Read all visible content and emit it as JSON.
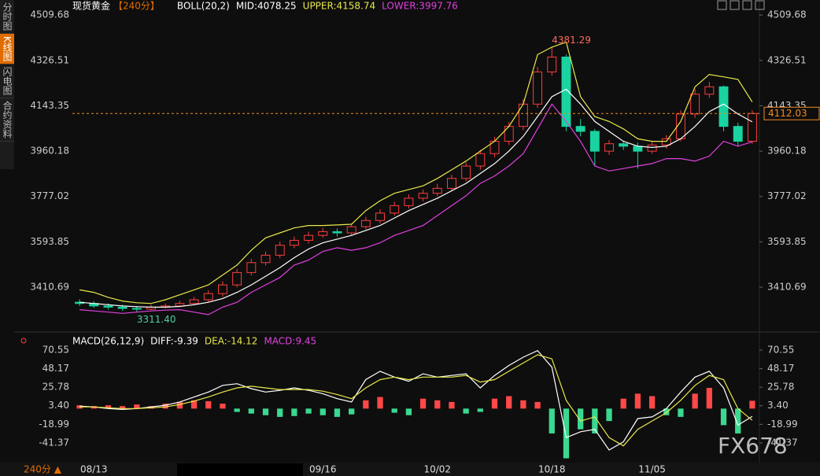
{
  "sidebar": {
    "tabs": [
      "分时图",
      "K线图",
      "闪电图",
      "合约资料"
    ]
  },
  "footer": {
    "period": "240分 ▲",
    "watermark": "FX678"
  },
  "chart_data": [
    {
      "type": "candlestick",
      "title": "现货黄金",
      "period": "【240分】",
      "legend": [
        {
          "text": "BOLL(20,2)",
          "color": "#ffffff"
        },
        {
          "text": "MID:4078.25",
          "color": "#ffffff"
        },
        {
          "text": "UPPER:4158.74",
          "color": "#e8e84a"
        },
        {
          "text": "LOWER:3997.76",
          "color": "#e040e0"
        }
      ],
      "categories": [
        null,
        "08/13",
        null,
        null,
        null,
        null,
        null,
        null,
        null,
        null,
        null,
        null,
        null,
        null,
        null,
        null,
        null,
        "09/16",
        null,
        null,
        null,
        null,
        null,
        null,
        null,
        "10/02",
        null,
        null,
        null,
        null,
        null,
        null,
        null,
        "10/18",
        null,
        null,
        null,
        null,
        null,
        null,
        "11/05",
        null,
        null,
        null,
        null,
        null,
        null,
        null
      ],
      "open": [
        3350,
        3345,
        3335,
        3330,
        3325,
        3322,
        3330,
        3335,
        3345,
        3360,
        3385,
        3420,
        3470,
        3510,
        3540,
        3580,
        3600,
        3620,
        3635,
        3630,
        3655,
        3680,
        3710,
        3740,
        3770,
        3790,
        3810,
        3850,
        3900,
        3950,
        4000,
        4060,
        4150,
        4280,
        4340,
        4060,
        4040,
        3960,
        3990,
        3980,
        3960,
        3985,
        4010,
        4110,
        4190,
        4220,
        4060,
        4000
      ],
      "high": [
        3362,
        3355,
        3345,
        3340,
        3335,
        3340,
        3345,
        3356,
        3372,
        3398,
        3435,
        3485,
        3525,
        3555,
        3595,
        3615,
        3635,
        3650,
        3648,
        3668,
        3695,
        3725,
        3755,
        3785,
        3805,
        3828,
        3865,
        3915,
        3965,
        4018,
        4078,
        4170,
        4300,
        4381.29,
        4350,
        4090,
        4050,
        4005,
        4000,
        3995,
        3998,
        4025,
        4125,
        4210,
        4240,
        4225,
        4075,
        4125
      ],
      "low": [
        3335,
        3328,
        3320,
        3315,
        3311.4,
        3318,
        3325,
        3333,
        3340,
        3352,
        3372,
        3410,
        3458,
        3498,
        3528,
        3568,
        3588,
        3610,
        3615,
        3620,
        3645,
        3668,
        3700,
        3728,
        3758,
        3778,
        3798,
        3838,
        3885,
        3935,
        3985,
        4045,
        4135,
        4265,
        4040,
        4020,
        3900,
        3945,
        3965,
        3890,
        3950,
        3970,
        4000,
        4095,
        4175,
        4040,
        3980,
        3990
      ],
      "close": [
        3345,
        3335,
        3330,
        3325,
        3322,
        3330,
        3335,
        3345,
        3360,
        3385,
        3420,
        3470,
        3510,
        3540,
        3580,
        3600,
        3620,
        3635,
        3630,
        3655,
        3680,
        3710,
        3740,
        3770,
        3790,
        3810,
        3850,
        3900,
        3950,
        4000,
        4060,
        4150,
        4280,
        4340,
        4060,
        4040,
        3960,
        3990,
        3980,
        3960,
        3985,
        4010,
        4110,
        4190,
        4220,
        4060,
        4000,
        4112.03
      ],
      "up_color": "#ff3d3d",
      "down_color": "#19d3a0",
      "series": [
        {
          "color": "#e8e84a",
          "values": [
            3400,
            3390,
            3370,
            3355,
            3348,
            3345,
            3360,
            3380,
            3400,
            3420,
            3460,
            3500,
            3560,
            3610,
            3630,
            3650,
            3660,
            3660,
            3662,
            3665,
            3720,
            3760,
            3790,
            3805,
            3820,
            3850,
            3885,
            3920,
            3960,
            4000,
            4060,
            4150,
            4350,
            4380,
            4400,
            4180,
            4100,
            4080,
            4050,
            4010,
            4000,
            4000,
            4080,
            4220,
            4270,
            4260,
            4250,
            4158.74
          ]
        },
        {
          "color": "#ffffff",
          "values": [
            3350,
            3345,
            3340,
            3335,
            3332,
            3330,
            3330,
            3333,
            3340,
            3350,
            3365,
            3390,
            3420,
            3455,
            3490,
            3530,
            3565,
            3590,
            3605,
            3620,
            3640,
            3660,
            3690,
            3720,
            3745,
            3770,
            3800,
            3830,
            3870,
            3910,
            3960,
            4020,
            4100,
            4180,
            4210,
            4150,
            4080,
            4040,
            4000,
            3980,
            3975,
            3980,
            4010,
            4060,
            4120,
            4150,
            4110,
            4078.25
          ]
        },
        {
          "color": "#e040e0",
          "values": [
            3320,
            3315,
            3310,
            3305,
            3310,
            3315,
            3318,
            3320,
            3310,
            3300,
            3330,
            3350,
            3390,
            3420,
            3450,
            3500,
            3520,
            3555,
            3570,
            3560,
            3570,
            3590,
            3620,
            3640,
            3660,
            3700,
            3740,
            3780,
            3830,
            3860,
            3900,
            3950,
            4050,
            4150,
            4080,
            4000,
            3900,
            3880,
            3890,
            3900,
            3910,
            3930,
            3930,
            3920,
            3940,
            4000,
            3980,
            3997.76
          ]
        }
      ],
      "ylim": [
        3252,
        4545
      ],
      "yticks": [
        3410.69,
        3593.85,
        3777.02,
        3960.18,
        4143.35,
        4326.51,
        4509.68
      ],
      "annotations": {
        "high": 4381.29,
        "low": {
          "value": 3311.4,
          "label": "3311.40"
        }
      },
      "current_color": "#f08a24"
    },
    {
      "type": "macd",
      "legend": [
        {
          "text": "MACD(26,12,9)",
          "color": "#ffffff"
        },
        {
          "text": "DIFF:-9.39",
          "color": "#ffffff"
        },
        {
          "text": "DEA:-14.12",
          "color": "#e8e84a"
        },
        {
          "text": "MACD:9.45",
          "color": "#e040e0"
        }
      ],
      "histogram": {
        "up_color": "#ff4848",
        "down_color": "#3ad890",
        "values": [
          4,
          3,
          4,
          3,
          5,
          3,
          6,
          8,
          10,
          9,
          6,
          -4,
          -6,
          -8,
          -10,
          -9,
          -6,
          -8,
          -10,
          -7,
          10,
          14,
          -5,
          -8,
          12,
          10,
          8,
          -6,
          -4,
          12,
          15,
          10,
          8,
          -30,
          -60,
          -25,
          -30,
          -15,
          12,
          18,
          15,
          -8,
          -10,
          18,
          25,
          -20,
          -30,
          9.45
        ]
      },
      "series": [
        {
          "color": "#ffffff",
          "values": [
            3,
            2,
            0,
            -1,
            0,
            2,
            4,
            8,
            14,
            20,
            28,
            30,
            24,
            20,
            22,
            25,
            22,
            18,
            12,
            8,
            35,
            45,
            38,
            33,
            42,
            38,
            40,
            42,
            25,
            40,
            52,
            62,
            70,
            50,
            -35,
            -28,
            -25,
            -50,
            -40,
            -12,
            -10,
            0,
            20,
            38,
            45,
            25,
            -20,
            -9.39
          ]
        },
        {
          "color": "#e8e84a",
          "values": [
            2,
            2,
            1,
            0,
            0,
            1,
            2,
            5,
            9,
            14,
            20,
            25,
            27,
            25,
            23,
            23,
            23,
            21,
            17,
            12,
            25,
            35,
            38,
            35,
            38,
            38,
            38,
            40,
            32,
            35,
            45,
            55,
            65,
            60,
            10,
            -15,
            -10,
            -35,
            -45,
            -25,
            -15,
            -5,
            10,
            28,
            40,
            35,
            0,
            -14.12
          ]
        }
      ],
      "ylim": [
        -65.2,
        82.9
      ],
      "yticks": [
        -41.37,
        -18.99,
        {
          "value": 3.4,
          "label": "3.40"
        },
        25.78,
        48.17,
        70.55
      ]
    }
  ]
}
